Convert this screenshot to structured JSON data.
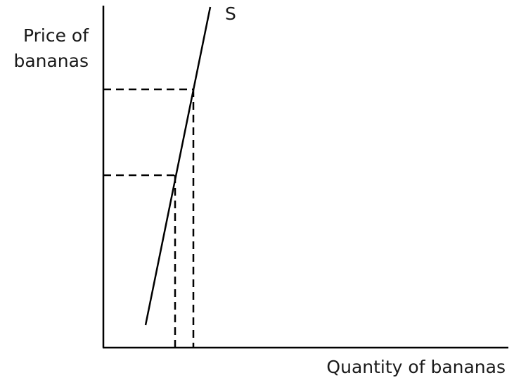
{
  "diagram": {
    "y_axis_label_line1": "Price of",
    "y_axis_label_line2": "bananas",
    "x_axis_label": "Quantity of bananas",
    "curve_label": "S",
    "line_color": "#000000",
    "text_color": "#1a1a1a"
  }
}
